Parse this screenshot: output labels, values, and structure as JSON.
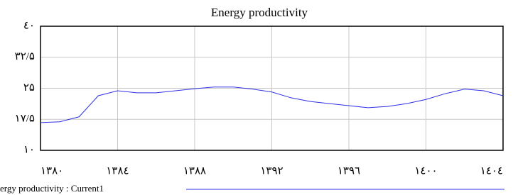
{
  "chart_data": {
    "type": "line",
    "title": "Energy productivity",
    "x": [
      1380,
      1381,
      1382,
      1383,
      1384,
      1385,
      1386,
      1387,
      1388,
      1389,
      1390,
      1391,
      1392,
      1393,
      1394,
      1395,
      1396,
      1397,
      1398,
      1399,
      1400,
      1401,
      1402,
      1403,
      1404
    ],
    "series": [
      {
        "name": "ergy productivity : Current1",
        "color": "#2f2fe8",
        "values": [
          16.7,
          16.9,
          18.1,
          23.2,
          24.4,
          23.9,
          23.9,
          24.4,
          24.9,
          25.3,
          25.3,
          24.8,
          24.1,
          22.7,
          21.8,
          21.3,
          20.8,
          20.3,
          20.6,
          21.3,
          22.3,
          23.7,
          24.8,
          24.4,
          23.2
        ]
      }
    ],
    "xlim": [
      1380,
      1404
    ],
    "xticks": [
      {
        "value": 1380,
        "label": "۱۳۸۰"
      },
      {
        "value": 1384,
        "label": "۱۳۸٤"
      },
      {
        "value": 1388,
        "label": "۱۳۸۸"
      },
      {
        "value": 1392,
        "label": "۱۳۹۲"
      },
      {
        "value": 1396,
        "label": "۱۳۹٦"
      },
      {
        "value": 1400,
        "label": "۱٤۰۰"
      },
      {
        "value": 1404,
        "label": "۱٤۰٤"
      }
    ],
    "ylim": [
      10,
      40
    ],
    "yticks": [
      {
        "value": 10,
        "label": "۱۰"
      },
      {
        "value": 17.5,
        "label": "۱۷/۵"
      },
      {
        "value": 25,
        "label": "۲۵"
      },
      {
        "value": 32.5,
        "label": "۳۲/۵"
      },
      {
        "value": 40,
        "label": "٤۰"
      }
    ],
    "grid": true
  }
}
